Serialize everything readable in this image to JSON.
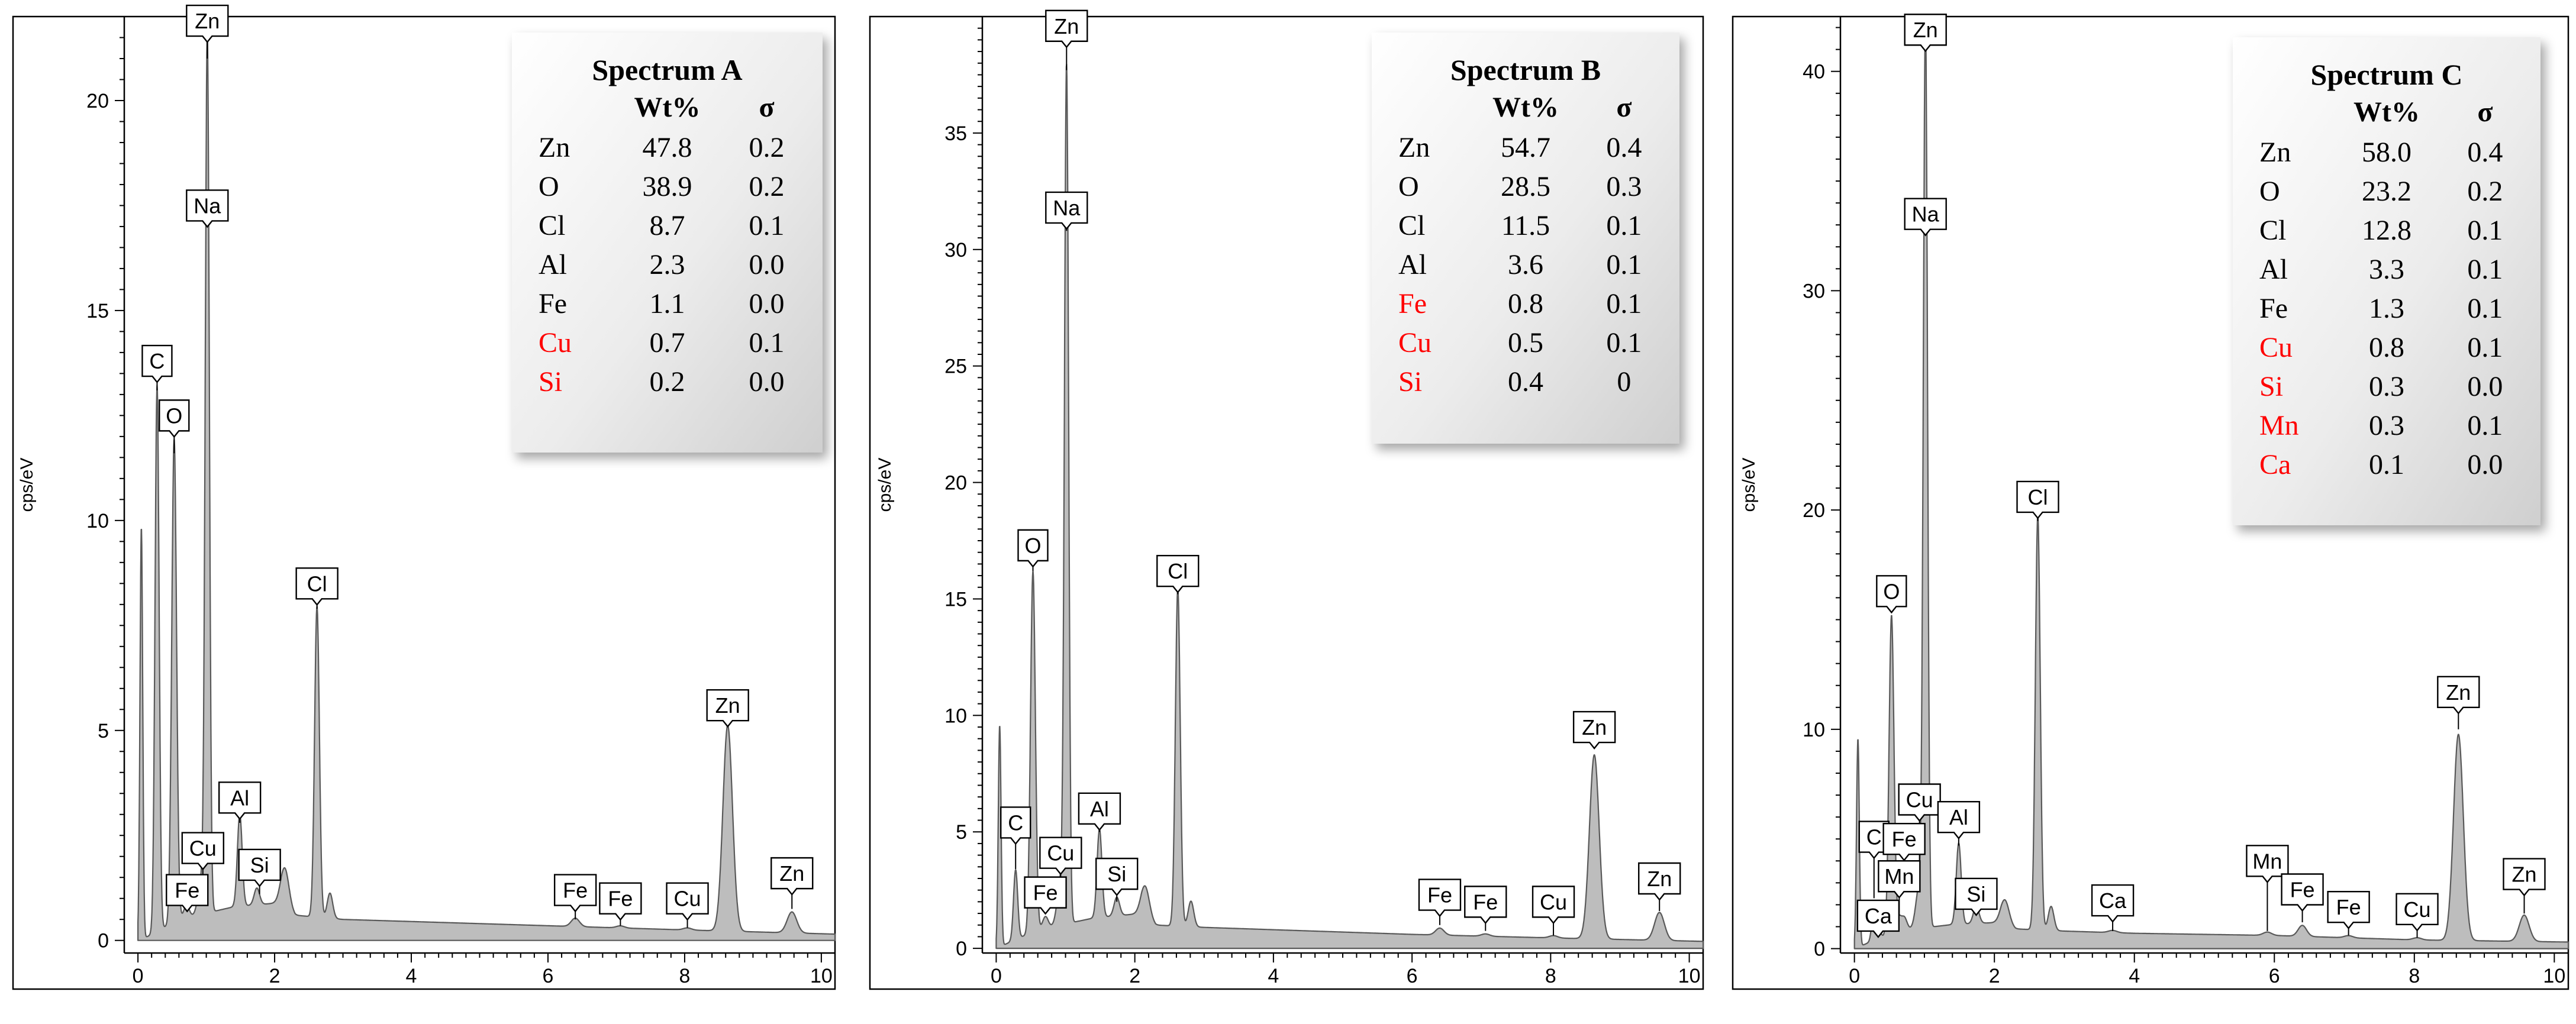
{
  "chart_data": [
    {
      "type": "area",
      "ylabel": "cps/eV",
      "xlabel": "",
      "xlim": [
        -0.2,
        10.2
      ],
      "ylim": [
        -0.3,
        22
      ],
      "xticks": [
        0,
        2,
        4,
        6,
        8,
        10
      ],
      "yticks": [
        0,
        5,
        10,
        15,
        20
      ],
      "legend_position": "top-right",
      "legend": {
        "title": "Spectrum A",
        "headers": [
          "Wt%",
          "σ"
        ],
        "rows": [
          {
            "element": "Zn",
            "wt": "47.8",
            "sigma": "0.2",
            "highlight": false
          },
          {
            "element": "O",
            "wt": "38.9",
            "sigma": "0.2",
            "highlight": false
          },
          {
            "element": "Cl",
            "wt": "8.7",
            "sigma": "0.1",
            "highlight": false
          },
          {
            "element": "Al",
            "wt": "2.3",
            "sigma": "0.0",
            "highlight": false
          },
          {
            "element": "Fe",
            "wt": "1.1",
            "sigma": "0.0",
            "highlight": false
          },
          {
            "element": "Cu",
            "wt": "0.7",
            "sigma": "0.1",
            "highlight": true
          },
          {
            "element": "Si",
            "wt": "0.2",
            "sigma": "0.0",
            "highlight": true
          }
        ]
      },
      "baseline": [
        [
          0,
          0
        ],
        [
          0.15,
          0.1
        ],
        [
          0.6,
          0.5
        ],
        [
          1.4,
          0.8
        ],
        [
          2.1,
          0.9
        ],
        [
          2.3,
          0.6
        ],
        [
          3.0,
          0.5
        ],
        [
          4.0,
          0.45
        ],
        [
          6.0,
          0.35
        ],
        [
          8.0,
          0.25
        ],
        [
          10.2,
          0.15
        ]
      ],
      "peaks": [
        {
          "x": 0.05,
          "height": 9.8,
          "width": 0.02
        },
        {
          "x": 0.28,
          "height": 13.0,
          "width": 0.03
        },
        {
          "x": 0.53,
          "height": 11.5,
          "width": 0.035
        },
        {
          "x": 0.71,
          "height": 0.3,
          "width": 0.04
        },
        {
          "x": 0.93,
          "height": 0.8,
          "width": 0.05
        },
        {
          "x": 1.015,
          "height": 20.8,
          "width": 0.03
        },
        {
          "x": 1.49,
          "height": 2.2,
          "width": 0.035
        },
        {
          "x": 1.74,
          "height": 0.4,
          "width": 0.04
        },
        {
          "x": 2.15,
          "height": 0.9,
          "width": 0.06
        },
        {
          "x": 2.62,
          "height": 7.4,
          "width": 0.035
        },
        {
          "x": 2.81,
          "height": 0.6,
          "width": 0.04
        },
        {
          "x": 6.4,
          "height": 0.2,
          "width": 0.06
        },
        {
          "x": 7.06,
          "height": 0.05,
          "width": 0.06
        },
        {
          "x": 8.04,
          "height": 0.05,
          "width": 0.06
        },
        {
          "x": 8.63,
          "height": 4.9,
          "width": 0.07
        },
        {
          "x": 9.57,
          "height": 0.5,
          "width": 0.07
        }
      ],
      "peak_labels": [
        {
          "text": "Zn",
          "x": 1.015,
          "y": 21.9,
          "peak_y": 21.0
        },
        {
          "text": "Na",
          "x": 1.015,
          "y": 17.5,
          "peak_y": 17.3
        },
        {
          "text": "C",
          "x": 0.28,
          "y": 13.8,
          "peak_y": 13.1
        },
        {
          "text": "O",
          "x": 0.53,
          "y": 12.5,
          "peak_y": 11.6
        },
        {
          "text": "Cl",
          "x": 2.62,
          "y": 8.5,
          "peak_y": 7.9
        },
        {
          "text": "Al",
          "x": 1.49,
          "y": 3.4,
          "peak_y": 2.8
        },
        {
          "text": "Cu",
          "x": 0.95,
          "y": 2.2,
          "peak_y": 1.4
        },
        {
          "text": "Si",
          "x": 1.78,
          "y": 1.8,
          "peak_y": 1.1
        },
        {
          "text": "Fe",
          "x": 0.72,
          "y": 1.2,
          "peak_y": 0.7
        },
        {
          "text": "Fe",
          "x": 6.4,
          "y": 1.2,
          "peak_y": 0.5
        },
        {
          "text": "Fe",
          "x": 7.06,
          "y": 1.0,
          "peak_y": 0.35
        },
        {
          "text": "Cu",
          "x": 8.04,
          "y": 1.0,
          "peak_y": 0.3
        },
        {
          "text": "Zn",
          "x": 8.63,
          "y": 5.6,
          "peak_y": 5.1
        },
        {
          "text": "Zn",
          "x": 9.57,
          "y": 1.6,
          "peak_y": 0.75
        }
      ]
    },
    {
      "type": "area",
      "ylabel": "cps/eV",
      "xlabel": "",
      "xlim": [
        -0.2,
        10.2
      ],
      "ylim": [
        -0.2,
        40
      ],
      "xticks": [
        0,
        2,
        4,
        6,
        8,
        10
      ],
      "yticks": [
        0,
        5,
        10,
        15,
        20,
        25,
        30,
        35
      ],
      "legend_position": "top-right",
      "legend": {
        "title": "Spectrum B",
        "headers": [
          "Wt%",
          "σ"
        ],
        "rows": [
          {
            "element": "Zn",
            "wt": "54.7",
            "sigma": "0.4",
            "highlight": false
          },
          {
            "element": "O",
            "wt": "28.5",
            "sigma": "0.3",
            "highlight": false
          },
          {
            "element": "Cl",
            "wt": "11.5",
            "sigma": "0.1",
            "highlight": false
          },
          {
            "element": "Al",
            "wt": "3.6",
            "sigma": "0.1",
            "highlight": false
          },
          {
            "element": "Fe",
            "wt": "0.8",
            "sigma": "0.1",
            "highlight": true
          },
          {
            "element": "Cu",
            "wt": "0.5",
            "sigma": "0.1",
            "highlight": true
          },
          {
            "element": "Si",
            "wt": "0.4",
            "sigma": "0",
            "highlight": true
          }
        ]
      },
      "baseline": [
        [
          0,
          0
        ],
        [
          0.15,
          0.2
        ],
        [
          0.6,
          0.8
        ],
        [
          1.4,
          1.3
        ],
        [
          2.1,
          1.5
        ],
        [
          2.3,
          1.0
        ],
        [
          3.0,
          0.9
        ],
        [
          4.0,
          0.8
        ],
        [
          6.0,
          0.6
        ],
        [
          8.0,
          0.45
        ],
        [
          10.2,
          0.3
        ]
      ],
      "peaks": [
        {
          "x": 0.05,
          "height": 9.5,
          "width": 0.02
        },
        {
          "x": 0.28,
          "height": 3.0,
          "width": 0.03
        },
        {
          "x": 0.53,
          "height": 15.5,
          "width": 0.035
        },
        {
          "x": 0.71,
          "height": 0.5,
          "width": 0.04
        },
        {
          "x": 0.93,
          "height": 1.8,
          "width": 0.05
        },
        {
          "x": 1.015,
          "height": 36.5,
          "width": 0.03
        },
        {
          "x": 1.49,
          "height": 3.8,
          "width": 0.035
        },
        {
          "x": 1.74,
          "height": 0.8,
          "width": 0.04
        },
        {
          "x": 2.15,
          "height": 1.3,
          "width": 0.06
        },
        {
          "x": 2.62,
          "height": 14.5,
          "width": 0.035
        },
        {
          "x": 2.81,
          "height": 1.1,
          "width": 0.04
        },
        {
          "x": 6.4,
          "height": 0.3,
          "width": 0.06
        },
        {
          "x": 7.06,
          "height": 0.1,
          "width": 0.06
        },
        {
          "x": 8.04,
          "height": 0.1,
          "width": 0.06
        },
        {
          "x": 8.63,
          "height": 7.9,
          "width": 0.07
        },
        {
          "x": 9.57,
          "height": 1.2,
          "width": 0.07
        }
      ],
      "peak_labels": [
        {
          "text": "Zn",
          "x": 1.015,
          "y": 39.6,
          "peak_y": 37.7
        },
        {
          "text": "Na",
          "x": 1.015,
          "y": 31.8,
          "peak_y": 30.8
        },
        {
          "text": "O",
          "x": 0.53,
          "y": 17.3,
          "peak_y": 16.2
        },
        {
          "text": "Cl",
          "x": 2.62,
          "y": 16.2,
          "peak_y": 15.2
        },
        {
          "text": "Al",
          "x": 1.49,
          "y": 6.0,
          "peak_y": 5.0
        },
        {
          "text": "C",
          "x": 0.28,
          "y": 5.4,
          "peak_y": 3.4
        },
        {
          "text": "Cu",
          "x": 0.93,
          "y": 4.1,
          "peak_y": 2.9
        },
        {
          "text": "Si",
          "x": 1.74,
          "y": 3.2,
          "peak_y": 2.0
        },
        {
          "text": "Fe",
          "x": 0.71,
          "y": 2.4,
          "peak_y": 1.5
        },
        {
          "text": "Fe",
          "x": 6.4,
          "y": 2.3,
          "peak_y": 1.0
        },
        {
          "text": "Fe",
          "x": 7.06,
          "y": 2.0,
          "peak_y": 0.75
        },
        {
          "text": "Cu",
          "x": 8.04,
          "y": 2.0,
          "peak_y": 0.55
        },
        {
          "text": "Zn",
          "x": 8.63,
          "y": 9.5,
          "peak_y": 8.6
        },
        {
          "text": "Zn",
          "x": 9.57,
          "y": 3.0,
          "peak_y": 1.6
        }
      ]
    },
    {
      "type": "area",
      "ylabel": "cps/eV",
      "xlabel": "",
      "xlim": [
        -0.2,
        10.2
      ],
      "ylim": [
        -0.2,
        42.5
      ],
      "xticks": [
        0,
        2,
        4,
        6,
        8,
        10
      ],
      "yticks": [
        0,
        10,
        20,
        30,
        40
      ],
      "legend_position": "top-right",
      "legend": {
        "title": "Spectrum C",
        "headers": [
          "Wt%",
          "σ"
        ],
        "rows": [
          {
            "element": "Zn",
            "wt": "58.0",
            "sigma": "0.4",
            "highlight": false
          },
          {
            "element": "O",
            "wt": "23.2",
            "sigma": "0.2",
            "highlight": false
          },
          {
            "element": "Cl",
            "wt": "12.8",
            "sigma": "0.1",
            "highlight": false
          },
          {
            "element": "Al",
            "wt": "3.3",
            "sigma": "0.1",
            "highlight": false
          },
          {
            "element": "Fe",
            "wt": "1.3",
            "sigma": "0.1",
            "highlight": false
          },
          {
            "element": "Cu",
            "wt": "0.8",
            "sigma": "0.1",
            "highlight": true
          },
          {
            "element": "Si",
            "wt": "0.3",
            "sigma": "0.0",
            "highlight": true
          },
          {
            "element": "Mn",
            "wt": "0.3",
            "sigma": "0.1",
            "highlight": true
          },
          {
            "element": "Ca",
            "wt": "0.1",
            "sigma": "0.0",
            "highlight": true
          }
        ]
      },
      "baseline": [
        [
          0,
          0
        ],
        [
          0.15,
          0.2
        ],
        [
          0.6,
          0.8
        ],
        [
          1.4,
          1.1
        ],
        [
          2.1,
          1.2
        ],
        [
          2.3,
          0.9
        ],
        [
          3.0,
          0.8
        ],
        [
          4.0,
          0.7
        ],
        [
          6.0,
          0.6
        ],
        [
          8.0,
          0.4
        ],
        [
          10.2,
          0.3
        ]
      ],
      "peaks": [
        {
          "x": 0.05,
          "height": 9.5,
          "width": 0.02
        },
        {
          "x": 0.28,
          "height": 1.5,
          "width": 0.03
        },
        {
          "x": 0.34,
          "height": 0.5,
          "width": 0.03
        },
        {
          "x": 0.53,
          "height": 14.5,
          "width": 0.035
        },
        {
          "x": 0.64,
          "height": 0.5,
          "width": 0.03
        },
        {
          "x": 0.71,
          "height": 0.6,
          "width": 0.04
        },
        {
          "x": 0.93,
          "height": 2.0,
          "width": 0.05
        },
        {
          "x": 1.015,
          "height": 41.0,
          "width": 0.03
        },
        {
          "x": 1.49,
          "height": 3.7,
          "width": 0.035
        },
        {
          "x": 1.74,
          "height": 0.8,
          "width": 0.04
        },
        {
          "x": 2.15,
          "height": 1.1,
          "width": 0.06
        },
        {
          "x": 2.62,
          "height": 18.9,
          "width": 0.035
        },
        {
          "x": 2.81,
          "height": 1.1,
          "width": 0.04
        },
        {
          "x": 3.69,
          "height": 0.1,
          "width": 0.06
        },
        {
          "x": 5.9,
          "height": 0.15,
          "width": 0.06
        },
        {
          "x": 6.4,
          "height": 0.5,
          "width": 0.06
        },
        {
          "x": 7.06,
          "height": 0.1,
          "width": 0.06
        },
        {
          "x": 8.04,
          "height": 0.1,
          "width": 0.06
        },
        {
          "x": 8.63,
          "height": 9.4,
          "width": 0.07
        },
        {
          "x": 9.57,
          "height": 1.2,
          "width": 0.07
        }
      ],
      "peak_labels": [
        {
          "text": "Zn",
          "x": 1.015,
          "y": 41.9,
          "peak_y": 41.0
        },
        {
          "text": "Na",
          "x": 1.015,
          "y": 33.5,
          "peak_y": 32.8
        },
        {
          "text": "Cl",
          "x": 2.62,
          "y": 20.6,
          "peak_y": 19.5
        },
        {
          "text": "O",
          "x": 0.53,
          "y": 16.3,
          "peak_y": 15.3
        },
        {
          "text": "Cu",
          "x": 0.93,
          "y": 6.8,
          "peak_y": 3.0
        },
        {
          "text": "Al",
          "x": 1.49,
          "y": 6.0,
          "peak_y": 4.7
        },
        {
          "text": "C",
          "x": 0.28,
          "y": 5.1,
          "peak_y": 2.3
        },
        {
          "text": "Fe",
          "x": 0.71,
          "y": 5.0,
          "peak_y": 3.2
        },
        {
          "text": "Mn",
          "x": 0.64,
          "y": 3.3,
          "peak_y": 1.5
        },
        {
          "text": "Si",
          "x": 1.74,
          "y": 2.5,
          "peak_y": 1.8
        },
        {
          "text": "Ca",
          "x": 0.34,
          "y": 1.5,
          "peak_y": 0.8
        },
        {
          "text": "Ca",
          "x": 3.69,
          "y": 2.2,
          "peak_y": 0.8
        },
        {
          "text": "Mn",
          "x": 5.9,
          "y": 4.0,
          "peak_y": 0.8
        },
        {
          "text": "Fe",
          "x": 6.4,
          "y": 2.7,
          "peak_y": 1.2
        },
        {
          "text": "Fe",
          "x": 7.06,
          "y": 1.9,
          "peak_y": 0.6
        },
        {
          "text": "Cu",
          "x": 8.04,
          "y": 1.8,
          "peak_y": 0.5
        },
        {
          "text": "Zn",
          "x": 8.63,
          "y": 11.7,
          "peak_y": 10.0
        },
        {
          "text": "Zn",
          "x": 9.57,
          "y": 3.4,
          "peak_y": 1.6
        }
      ]
    }
  ],
  "colors": {
    "area_fill": "#bdbdbd",
    "area_stroke": "#595959",
    "highlight_text": "#ff0000",
    "legend_bg_light": "#ffffff",
    "legend_bg_dark": "#d6d6d6",
    "frame": "#000000"
  }
}
